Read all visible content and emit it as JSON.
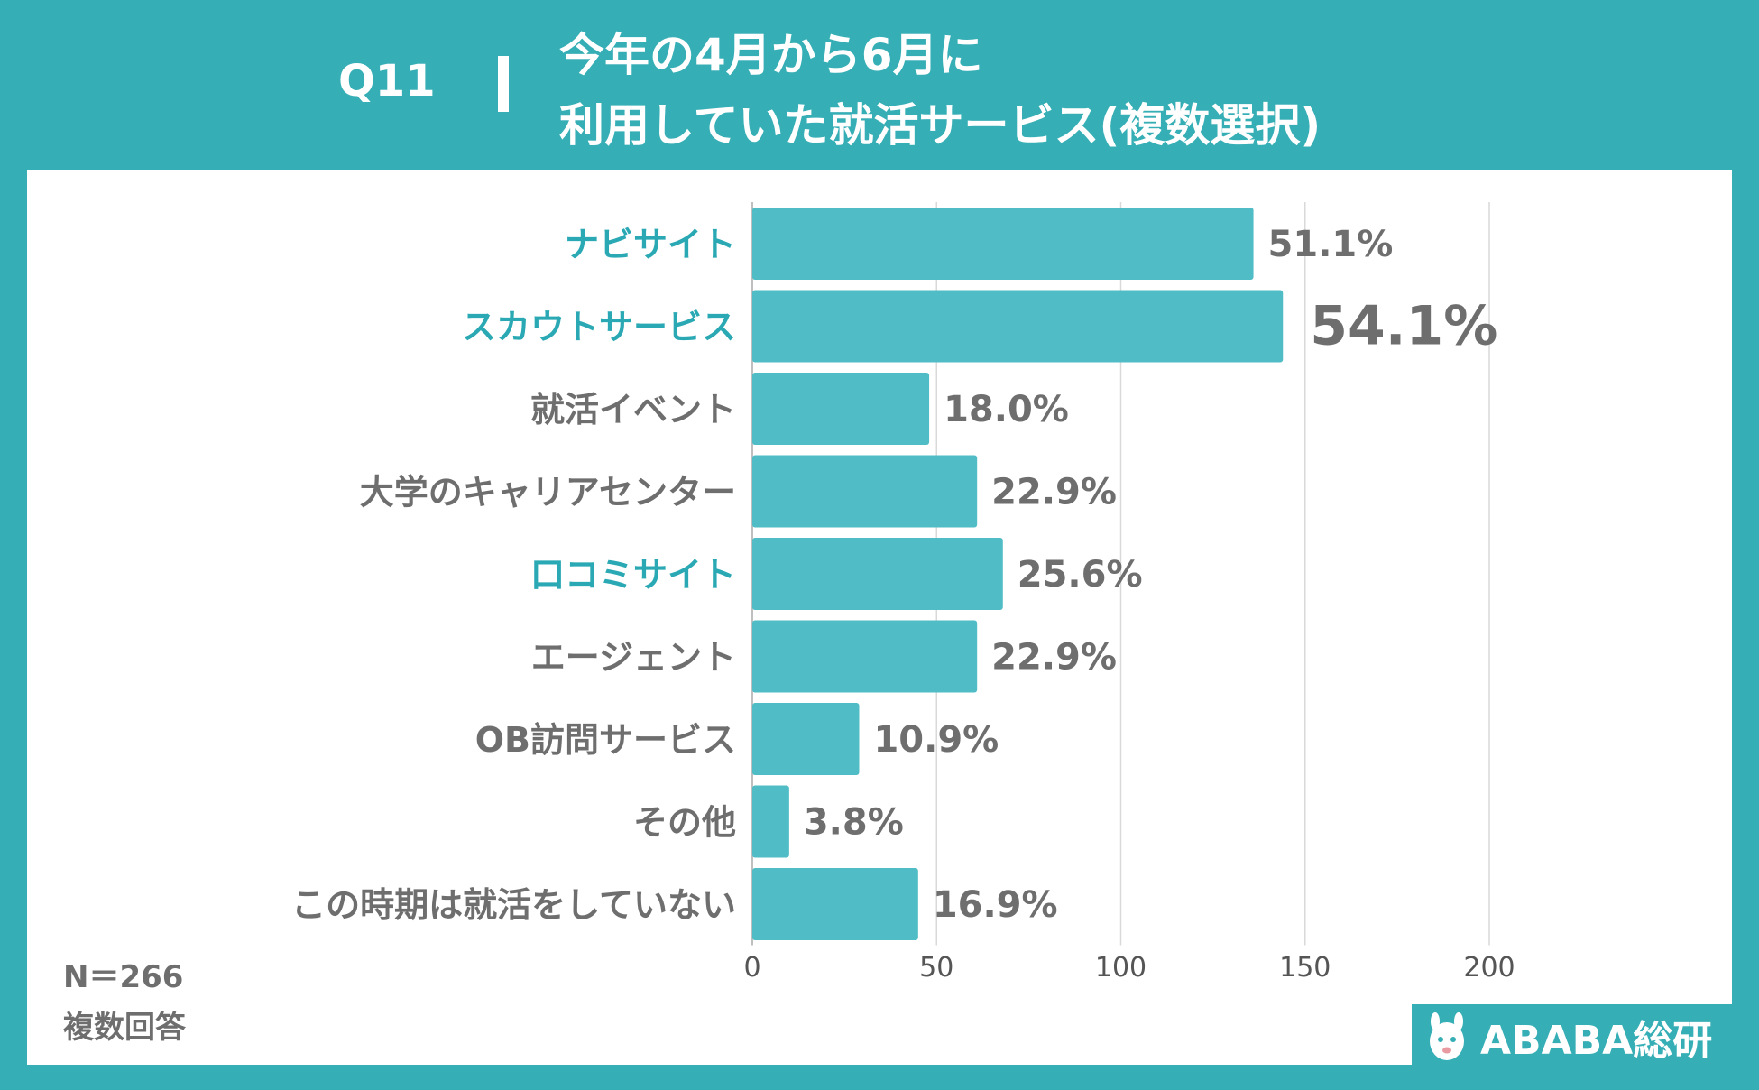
{
  "header": {
    "question": "Q11",
    "title_line1": "今年の4月から6月に",
    "title_line2": "利用していた就活サービス(複数選択)"
  },
  "footnote": {
    "sample_size": "N＝266",
    "note": "複数回答"
  },
  "brand": {
    "name": "ABABA総研"
  },
  "colors": {
    "accent": "#35AEB5",
    "bar": "#4FBCC6",
    "highlight_label": "#2AA9B4",
    "text_gray": "#6e6e6e",
    "grid": "#d9d9d9"
  },
  "chart_data": {
    "type": "bar",
    "orientation": "horizontal",
    "categories": [
      "ナビサイト",
      "スカウトサービス",
      "就活イベント",
      "大学のキャリアセンター",
      "口コミサイト",
      "エージェント",
      "OB訪問サービス",
      "その他",
      "この時期は就活をしていない"
    ],
    "values": [
      136,
      144,
      48,
      61,
      68,
      61,
      29,
      10,
      45
    ],
    "data_labels": [
      "51.1%",
      "54.1%",
      "18.0%",
      "22.9%",
      "25.6%",
      "22.9%",
      "10.9%",
      "3.8%",
      "16.9%"
    ],
    "highlighted": [
      true,
      true,
      false,
      false,
      true,
      false,
      false,
      false,
      false
    ],
    "emphasized_label": [
      false,
      true,
      false,
      false,
      false,
      false,
      false,
      false,
      false
    ],
    "xlim": [
      0,
      200
    ],
    "xticks": [
      "0",
      "50",
      "100",
      "150",
      "200"
    ],
    "grid": true,
    "title": "今年の4月から6月に利用していた就活サービス(複数選択)"
  }
}
